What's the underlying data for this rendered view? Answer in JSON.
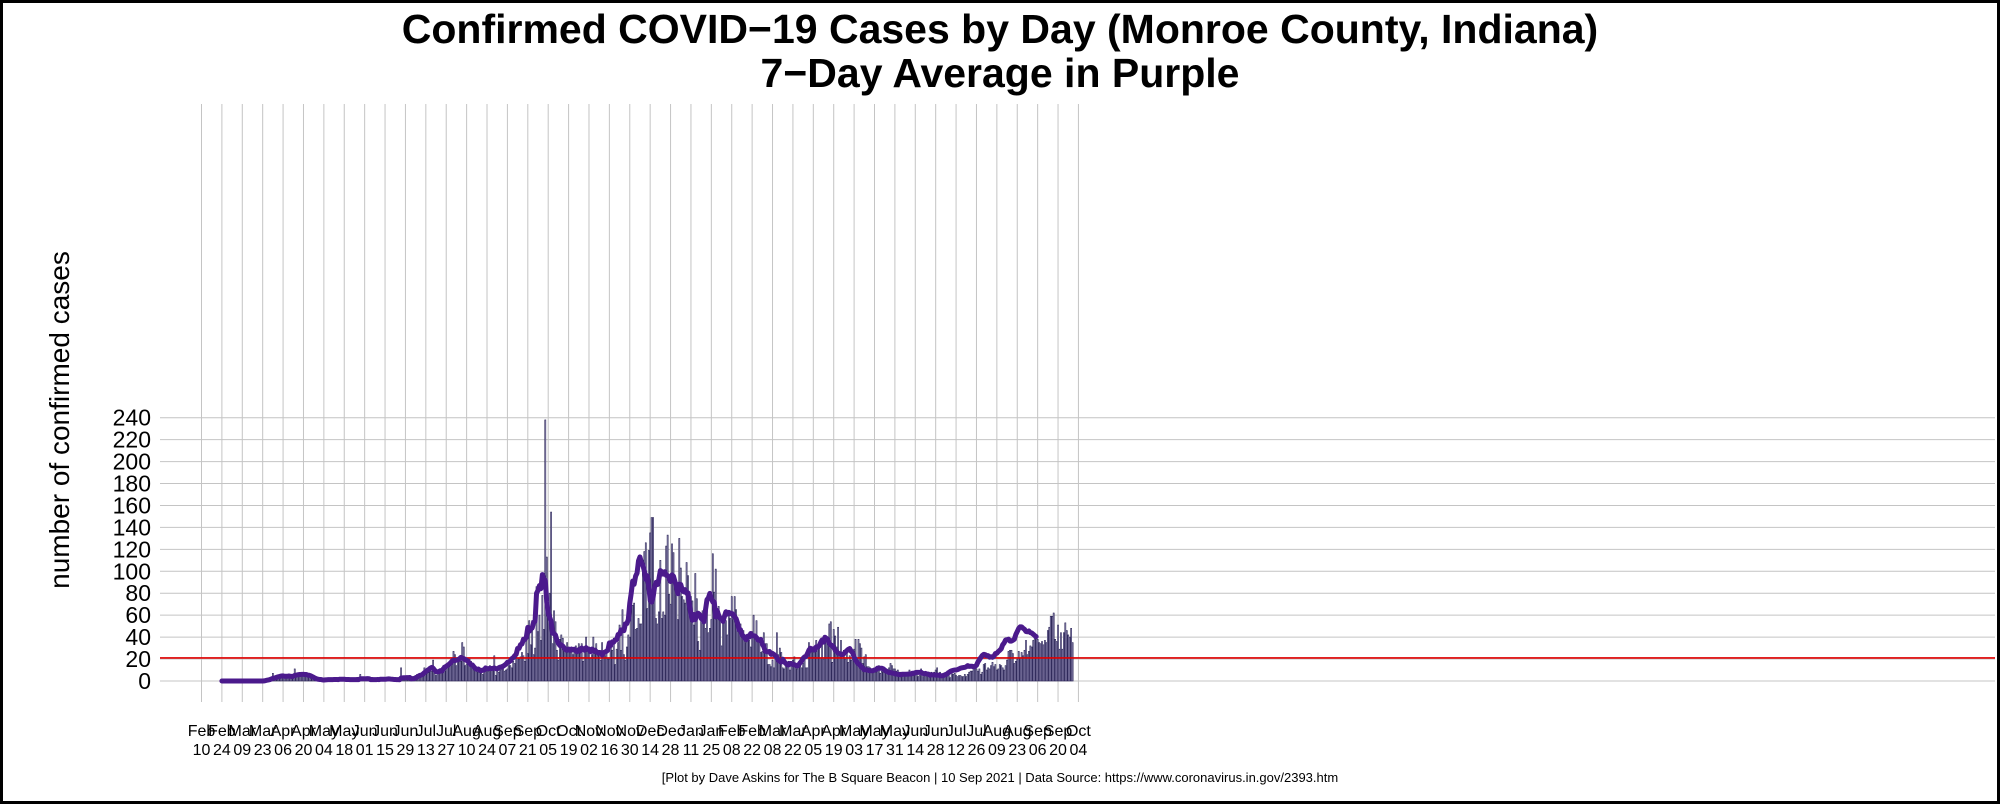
{
  "chart_data": {
    "type": "bar",
    "title": "Confirmed COVID−19 Cases by Day (Monroe County, Indiana)",
    "subtitle": "7−Day Average in Purple",
    "xlabel": "",
    "ylabel": "number of confirmed cases",
    "ylim": [
      0,
      240
    ],
    "y_ticks": [
      0,
      20,
      40,
      60,
      80,
      100,
      120,
      140,
      160,
      180,
      200,
      220,
      240
    ],
    "grid": true,
    "x_tick_labels": [
      [
        "Feb",
        "10"
      ],
      [
        "Feb",
        "24"
      ],
      [
        "Mar",
        "09"
      ],
      [
        "Mar",
        "23"
      ],
      [
        "Apr",
        "06"
      ],
      [
        "Apr",
        "20"
      ],
      [
        "May",
        "04"
      ],
      [
        "May",
        "18"
      ],
      [
        "Jun",
        "01"
      ],
      [
        "Jun",
        "15"
      ],
      [
        "Jun",
        "29"
      ],
      [
        "Jul",
        "13"
      ],
      [
        "Jul",
        "27"
      ],
      [
        "Aug",
        "10"
      ],
      [
        "Aug",
        "24"
      ],
      [
        "Sep",
        "07"
      ],
      [
        "Sep",
        "21"
      ],
      [
        "Oct",
        "05"
      ],
      [
        "Oct",
        "19"
      ],
      [
        "Nov",
        "02"
      ],
      [
        "Nov",
        "16"
      ],
      [
        "Nov",
        "30"
      ],
      [
        "Dec",
        "14"
      ],
      [
        "Dec",
        "28"
      ],
      [
        "Jan",
        "11"
      ],
      [
        "Jan",
        "25"
      ],
      [
        "Feb",
        "08"
      ],
      [
        "Feb",
        "22"
      ],
      [
        "Mar",
        "08"
      ],
      [
        "Mar",
        "22"
      ],
      [
        "Apr",
        "05"
      ],
      [
        "Apr",
        "19"
      ],
      [
        "May",
        "03"
      ],
      [
        "May",
        "17"
      ],
      [
        "May",
        "31"
      ],
      [
        "Jun",
        "14"
      ],
      [
        "Jun",
        "28"
      ],
      [
        "Jul",
        "12"
      ],
      [
        "Jul",
        "26"
      ],
      [
        "Aug",
        "09"
      ],
      [
        "Aug",
        "23"
      ],
      [
        "Sep",
        "06"
      ],
      [
        "Sep",
        "20"
      ],
      [
        "Oct",
        "04"
      ]
    ],
    "reference_line": {
      "value": 21,
      "color": "#e00000"
    },
    "series": [
      {
        "name": "Daily confirmed cases",
        "color": "#a9a2c9",
        "days_after_feb_10_2020": [
          14,
          574
        ],
        "values": [
          0,
          0,
          0,
          0,
          0,
          0,
          0,
          0,
          0,
          0,
          0,
          0,
          0,
          0,
          0,
          0,
          0,
          0,
          0,
          0,
          0,
          0,
          0,
          0,
          0,
          0,
          0,
          0,
          0,
          0,
          1,
          2,
          2,
          3,
          3,
          7,
          4,
          2,
          5,
          3,
          6,
          5,
          5,
          4,
          3,
          3,
          6,
          4,
          4,
          5,
          11,
          5,
          6,
          7,
          4,
          5,
          5,
          6,
          7,
          4,
          4,
          3,
          4,
          2,
          1,
          1,
          0,
          1,
          1,
          0,
          1,
          0,
          2,
          2,
          1,
          1,
          1,
          2,
          1,
          1,
          0,
          3,
          1,
          1,
          1,
          1,
          2,
          2,
          1,
          0,
          1,
          1,
          2,
          2,
          1,
          6,
          1,
          1,
          2,
          2,
          1,
          1,
          2,
          2,
          1,
          1,
          1,
          1,
          1,
          3,
          1,
          1,
          1,
          2,
          2,
          2,
          1,
          2,
          1,
          1,
          1,
          1,
          1,
          12,
          3,
          2,
          1,
          2,
          1,
          2,
          3,
          4,
          3,
          5,
          6,
          5,
          7,
          4,
          8,
          12,
          9,
          10,
          8,
          10,
          9,
          19,
          7,
          5,
          8,
          10,
          11,
          8,
          14,
          9,
          12,
          15,
          17,
          16,
          18,
          27,
          24,
          14,
          20,
          22,
          18,
          35,
          31,
          14,
          15,
          19,
          20,
          18,
          16,
          14,
          13,
          12,
          8,
          8,
          9,
          6,
          10,
          9,
          11,
          9,
          14,
          12,
          11,
          23,
          5,
          9,
          8,
          10,
          15,
          11,
          9,
          10,
          11,
          19,
          14,
          12,
          18,
          16,
          22,
          21,
          20,
          22,
          26,
          23,
          18,
          39,
          25,
          55,
          33,
          55,
          24,
          30,
          86,
          45,
          60,
          37,
          78,
          47,
          238,
          113,
          68,
          80,
          154,
          34,
          64,
          54,
          28,
          19,
          38,
          42,
          39,
          31,
          28,
          35,
          27,
          29,
          26,
          24,
          30,
          32,
          27,
          34,
          26,
          34,
          18,
          28,
          40,
          27,
          31,
          21,
          24,
          40,
          25,
          34,
          23,
          28,
          19,
          35,
          25,
          23,
          28,
          20,
          20,
          31,
          28,
          39,
          15,
          29,
          35,
          51,
          28,
          65,
          24,
          19,
          31,
          42,
          40,
          83,
          69,
          71,
          47,
          48,
          57,
          52,
          52,
          110,
          118,
          126,
          66,
          119,
          135,
          149,
          149,
          84,
          57,
          52,
          63,
          110,
          57,
          63,
          60,
          123,
          133,
          79,
          70,
          125,
          117,
          88,
          82,
          56,
          130,
          103,
          77,
          74,
          71,
          108,
          96,
          80,
          77,
          73,
          51,
          98,
          75,
          36,
          28,
          58,
          64,
          53,
          48,
          72,
          44,
          48,
          56,
          116,
          81,
          102,
          65,
          68,
          56,
          32,
          55,
          60,
          55,
          42,
          64,
          57,
          77,
          56,
          77,
          65,
          49,
          53,
          52,
          41,
          46,
          38,
          35,
          38,
          37,
          31,
          45,
          60,
          39,
          55,
          38,
          35,
          26,
          27,
          44,
          34,
          34,
          15,
          15,
          13,
          19,
          12,
          20,
          44,
          24,
          30,
          26,
          12,
          11,
          13,
          14,
          18,
          10,
          15,
          19,
          22,
          14,
          11,
          16,
          13,
          12,
          16,
          22,
          12,
          12,
          35,
          30,
          27,
          26,
          27,
          37,
          33,
          33,
          21,
          34,
          20,
          39,
          37,
          35,
          52,
          54,
          17,
          47,
          41,
          31,
          49,
          23,
          37,
          21,
          28,
          20,
          26,
          17,
          23,
          19,
          20,
          29,
          38,
          16,
          38,
          34,
          30,
          16,
          22,
          24,
          13,
          13,
          12,
          11,
          10,
          9,
          8,
          10,
          14,
          7,
          9,
          8,
          9,
          11,
          10,
          12,
          16,
          14,
          11,
          11,
          9,
          10,
          8,
          8,
          6,
          7,
          7,
          8,
          8,
          10,
          5,
          5,
          5,
          6,
          6,
          4,
          5,
          11,
          4,
          4,
          6,
          7,
          8,
          4,
          8,
          7,
          8,
          10,
          12,
          6,
          8,
          5,
          6,
          7,
          5,
          9,
          5,
          3,
          7,
          6,
          7,
          5,
          4,
          5,
          5,
          4,
          4,
          6,
          4,
          6,
          8,
          9,
          9,
          13,
          12,
          11,
          9,
          11,
          6,
          8,
          15,
          16,
          10,
          12,
          11,
          14,
          17,
          13,
          15,
          10,
          11,
          15,
          14,
          12,
          10,
          14,
          19,
          27,
          28,
          28,
          25,
          16,
          18,
          20,
          27,
          21,
          26,
          23,
          28,
          37,
          24,
          27,
          32,
          31,
          37,
          43,
          41,
          38,
          35,
          34,
          36,
          33,
          37,
          35,
          46,
          49,
          59,
          59,
          62,
          38,
          36,
          51,
          29,
          44,
          29,
          44,
          53,
          46,
          42,
          40,
          48,
          35
        ]
      },
      {
        "name": "7-Day Average",
        "color": "#4b1a8c",
        "days_after_feb_10_2020": [
          14,
          574
        ],
        "values": [
          0,
          0,
          0,
          0,
          0,
          0,
          0,
          0,
          0,
          0,
          0,
          0,
          0,
          0,
          0,
          0,
          0,
          0,
          0,
          0,
          0,
          0,
          0,
          0,
          0,
          0,
          0,
          0,
          0,
          0.1,
          0.4,
          0.7,
          1.0,
          1.3,
          1.9,
          2.4,
          2.7,
          3.1,
          3.6,
          3.9,
          4.3,
          4.6,
          4.7,
          4.3,
          4.3,
          4.3,
          4.6,
          4.3,
          4.1,
          4.3,
          5.1,
          5.3,
          5.6,
          5.9,
          5.9,
          6.0,
          6.1,
          5.9,
          5.9,
          5.3,
          5.2,
          4.7,
          4.0,
          3.3,
          2.6,
          2.0,
          1.6,
          1.4,
          1.4,
          1.0,
          0.9,
          1.0,
          1.1,
          1.3,
          1.3,
          1.2,
          1.2,
          1.4,
          1.4,
          1.4,
          1.3,
          1.6,
          1.6,
          1.6,
          1.6,
          1.4,
          1.4,
          1.4,
          1.3,
          1.3,
          1.2,
          1.3,
          1.3,
          1.4,
          1.3,
          2.0,
          2.0,
          2.0,
          2.0,
          2.1,
          2.2,
          2.1,
          1.3,
          1.4,
          1.3,
          1.3,
          1.2,
          1.4,
          1.3,
          1.6,
          1.6,
          1.6,
          1.6,
          1.7,
          1.9,
          1.9,
          1.7,
          1.6,
          1.4,
          1.4,
          1.3,
          1.2,
          1.1,
          2.7,
          2.9,
          3.0,
          3.0,
          3.1,
          3.1,
          3.2,
          1.9,
          2.1,
          2.3,
          2.9,
          3.6,
          4.4,
          5.2,
          5.4,
          6.3,
          7.6,
          8.7,
          9.7,
          10.4,
          11.7,
          12.4,
          11.7,
          9.9,
          8.6,
          8.4,
          8.6,
          9.4,
          9.1,
          11.1,
          12.7,
          13.4,
          14.4,
          15.3,
          16.6,
          18.2,
          19.0,
          18.6,
          19.0,
          19.4,
          20.1,
          21.5,
          20.8,
          20.5,
          19.6,
          18.9,
          17.7,
          16.2,
          14.9,
          14.6,
          12.9,
          11.4,
          10.6,
          10.9,
          9.9,
          9.3,
          10.0,
          10.0,
          11.9,
          11.1,
          11.3,
          11.4,
          11.4,
          11.5,
          11.9,
          11.3,
          11.0,
          12.0,
          12.7,
          12.7,
          13.4,
          14.4,
          15.4,
          17.0,
          17.3,
          18.3,
          20.3,
          21.2,
          23.0,
          24.3,
          29.6,
          29.7,
          33.1,
          33.7,
          38.0,
          37.9,
          40.0,
          48.9,
          45.4,
          48.0,
          48.3,
          53.6,
          54.4,
          80.0,
          82.6,
          87.0,
          84.1,
          97.0,
          93.0,
          92.0,
          72.1,
          62.1,
          58.1,
          54.4,
          43.6,
          43.3,
          41.9,
          37.1,
          34.4,
          32.4,
          33.0,
          31.9,
          30.1,
          28.4,
          28.0,
          29.1,
          28.0,
          29.1,
          28.4,
          29.0,
          27.4,
          26.7,
          28.6,
          27.4,
          30.1,
          29.0,
          28.0,
          30.4,
          29.0,
          28.9,
          26.7,
          29.1,
          27.1,
          28.1,
          26.9,
          25.7,
          25.4,
          25.9,
          23.6,
          25.9,
          26.4,
          27.1,
          28.1,
          34.7,
          32.4,
          35.6,
          35.4,
          37.4,
          37.7,
          42.4,
          42.6,
          46.6,
          46.1,
          45.9,
          52.1,
          52.3,
          56.0,
          70.9,
          80.1,
          91.1,
          88.1,
          95.6,
          98.3,
          109.6,
          113.1,
          107.9,
          105.5,
          100.4,
          92.6,
          96.0,
          86.6,
          73.9,
          72.0,
          76.1,
          85.6,
          89.9,
          87.9,
          93.0,
          100.7,
          99.4,
          97.4,
          99.6,
          96.3,
          96.1,
          93.7,
          90.7,
          96.7,
          95.6,
          90.7,
          86.6,
          79.6,
          88.3,
          88.0,
          83.1,
          81.3,
          83.3,
          80.1,
          80.3,
          68.3,
          60.4,
          55.4,
          60.6,
          56.0,
          60.9,
          61.7,
          60.6,
          57.0,
          56.1,
          54.0,
          65.0,
          74.1,
          75.9,
          79.9,
          74.9,
          72.0,
          72.1,
          58.3,
          64.3,
          60.0,
          57.3,
          56.6,
          54.3,
          58.9,
          63.1,
          61.0,
          62.6,
          61.3,
          61.6,
          60.9,
          58.3,
          56.9,
          52.7,
          46.7,
          46.7,
          42.1,
          41.0,
          38.9,
          37.6,
          40.9,
          40.0,
          43.3,
          41.4,
          41.3,
          41.0,
          39.6,
          37.4,
          37.3,
          37.9,
          33.6,
          31.3,
          27.1,
          26.7,
          26.7,
          26.9,
          24.3,
          25.1,
          24.1,
          23.1,
          21.4,
          18.9,
          17.9,
          17.3,
          19.9,
          17.6,
          16.1,
          15.1,
          14.6,
          15.9,
          15.9,
          15.0,
          14.9,
          14.3,
          13.7,
          14.7,
          16.7,
          18.3,
          20.6,
          22.0,
          22.4,
          25.1,
          28.1,
          29.9,
          28.4,
          29.3,
          28.3,
          31.1,
          30.9,
          32.0,
          34.9,
          37.4,
          35.4,
          39.9,
          38.9,
          37.7,
          34.4,
          32.7,
          32.4,
          30.6,
          28.3,
          26.9,
          25.4,
          25.0,
          24.4,
          24.0,
          24.9,
          26.3,
          27.7,
          28.9,
          29.6,
          27.1,
          25.7,
          22.0,
          19.0,
          17.1,
          15.7,
          14.4,
          13.0,
          11.6,
          10.3,
          10.3,
          10.0,
          9.6,
          9.4,
          9.3,
          9.4,
          10.1,
          10.3,
          11.7,
          11.6,
          11.6,
          11.6,
          11.1,
          10.0,
          9.1,
          8.4,
          7.7,
          7.7,
          7.3,
          7.1,
          6.6,
          6.3,
          6.1,
          5.9,
          5.7,
          6.1,
          6.1,
          6.1,
          6.1,
          6.3,
          6.4,
          6.4,
          7.1,
          7.0,
          7.6,
          7.9,
          7.9,
          7.9,
          8.0,
          7.0,
          6.6,
          6.9,
          6.4,
          6.3,
          5.3,
          5.6,
          5.6,
          5.6,
          5.4,
          5.4,
          5.4,
          4.9,
          4.7,
          4.9,
          5.4,
          6.0,
          6.7,
          7.7,
          8.7,
          9.3,
          9.7,
          10.0,
          10.0,
          10.4,
          11.0,
          11.7,
          12.0,
          12.3,
          12.4,
          13.0,
          14.0,
          13.3,
          13.4,
          13.4,
          13.0,
          13.3,
          14.3,
          17.3,
          19.4,
          21.4,
          23.3,
          24.3,
          24.0,
          23.0,
          23.1,
          21.7,
          22.1,
          21.6,
          22.6,
          25.0,
          25.3,
          26.9,
          28.0,
          29.4,
          33.0,
          34.7,
          37.4,
          37.6,
          38.1,
          36.4,
          36.4,
          37.1,
          38.1,
          42.3,
          45.1,
          47.9,
          49.4,
          49.3,
          48.1,
          47.1,
          45.1,
          44.9,
          45.6,
          44.1,
          43.7,
          42.6,
          41.4,
          40.4
        ]
      }
    ]
  },
  "footer": {
    "credit": "[Plot by Dave Askins for The B Square Beacon | 10 Sep 2021 | Data Source: https://www.coronavirus.in.gov/2393.htm"
  }
}
